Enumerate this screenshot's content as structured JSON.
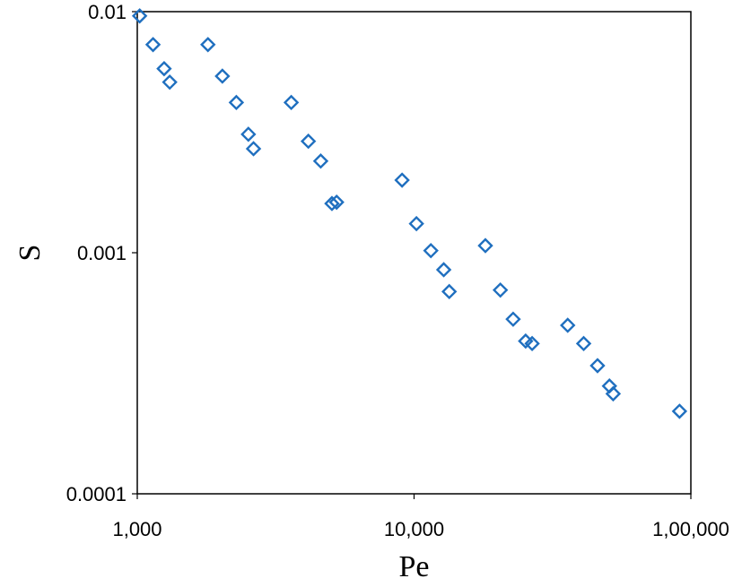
{
  "chart_data": {
    "type": "scatter",
    "title": "",
    "xlabel": "Pe",
    "ylabel": "S",
    "x_scale": "log",
    "y_scale": "log",
    "xlim": [
      1000,
      100000
    ],
    "ylim": [
      0.0001,
      0.01
    ],
    "grid": false,
    "x_ticks": [
      1000,
      10000,
      100000
    ],
    "x_tick_labels": [
      "1,000",
      "10,000",
      "1,00,000"
    ],
    "y_ticks": [
      0.0001,
      0.001,
      0.01
    ],
    "y_tick_labels": [
      "0.0001",
      "0.001",
      "0.01"
    ],
    "marker": "diamond-open",
    "color": "#1f6fbf",
    "points": [
      {
        "x": 1020,
        "y": 0.0096
      },
      {
        "x": 1140,
        "y": 0.0073
      },
      {
        "x": 1250,
        "y": 0.0058
      },
      {
        "x": 1310,
        "y": 0.0051
      },
      {
        "x": 1800,
        "y": 0.0073
      },
      {
        "x": 2030,
        "y": 0.0054
      },
      {
        "x": 2280,
        "y": 0.0042
      },
      {
        "x": 2520,
        "y": 0.0031
      },
      {
        "x": 2630,
        "y": 0.0027
      },
      {
        "x": 3600,
        "y": 0.0042
      },
      {
        "x": 4150,
        "y": 0.0029
      },
      {
        "x": 4600,
        "y": 0.0024
      },
      {
        "x": 5050,
        "y": 0.0016
      },
      {
        "x": 5250,
        "y": 0.00162
      },
      {
        "x": 9050,
        "y": 0.002
      },
      {
        "x": 10200,
        "y": 0.00132
      },
      {
        "x": 11500,
        "y": 0.00102
      },
      {
        "x": 12800,
        "y": 0.00085
      },
      {
        "x": 13400,
        "y": 0.00069
      },
      {
        "x": 18100,
        "y": 0.00107
      },
      {
        "x": 20500,
        "y": 0.0007
      },
      {
        "x": 22800,
        "y": 0.00053
      },
      {
        "x": 25300,
        "y": 0.00043
      },
      {
        "x": 26700,
        "y": 0.00042
      },
      {
        "x": 35900,
        "y": 0.0005
      },
      {
        "x": 41000,
        "y": 0.00042
      },
      {
        "x": 46000,
        "y": 0.00034
      },
      {
        "x": 50800,
        "y": 0.00028
      },
      {
        "x": 52400,
        "y": 0.00026
      },
      {
        "x": 91000,
        "y": 0.00022
      }
    ]
  }
}
